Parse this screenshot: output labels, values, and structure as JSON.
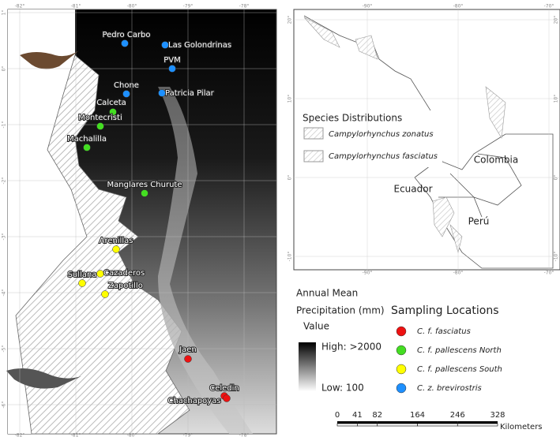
{
  "main_map": {
    "top_labels": [
      "-82°",
      "-81°",
      "-80°",
      "-79°",
      "-78°"
    ],
    "side_labels": [
      "1°",
      "0°",
      "-1°",
      "-2°",
      "-3°",
      "-4°",
      "-5°",
      "-6°"
    ]
  },
  "sampling_groups": [
    {
      "name": "C. z. brevirostris",
      "color": "#1e90ff",
      "sites": [
        "Pedro Carbo",
        "Las Golondrinas",
        "PVM",
        "Chone",
        "Patricia Pilar"
      ]
    },
    {
      "name": "C. f. pallescens North",
      "color": "#44dd22",
      "sites": [
        "Calceta",
        "Montecristi",
        "Machalilla",
        "Manglares Churute"
      ]
    },
    {
      "name": "C. f. pallescens South",
      "color": "#ffff00",
      "sites": [
        "Arenillas",
        "Cazaderos",
        "Sullana",
        "Zapotillo"
      ]
    },
    {
      "name": "C. f. fasciatus",
      "color": "#ee1111",
      "sites": [
        "Jaen",
        "Celedin",
        "Chachapoyas"
      ]
    }
  ],
  "inset_map": {
    "top_labels": [
      "-90°",
      "-80°",
      "-70°"
    ],
    "side_labels": [
      "20°",
      "10°",
      "0°",
      "-10°"
    ],
    "countries": [
      "Colombia",
      "Ecuador",
      "Perú"
    ],
    "species_legend": {
      "title": "Species Distributions",
      "items": [
        "Campylorhynchus zonatus",
        "Campylorhynchus fasciatus"
      ]
    }
  },
  "precipitation_legend": {
    "title_line1": "Annual Mean",
    "title_line2": "Precipitation (mm)",
    "value": "Value",
    "high": "High: >2000",
    "low": "Low: 100"
  },
  "sampling_legend": {
    "title": "Sampling Locations",
    "order": [
      "C. f. fasciatus",
      "C. f. pallescens North",
      "C. f. pallescens South",
      "C. z. brevirostris"
    ]
  },
  "scale_bar": {
    "ticks": [
      0,
      41,
      82,
      164,
      246,
      328
    ],
    "unit": "Kilometers"
  }
}
